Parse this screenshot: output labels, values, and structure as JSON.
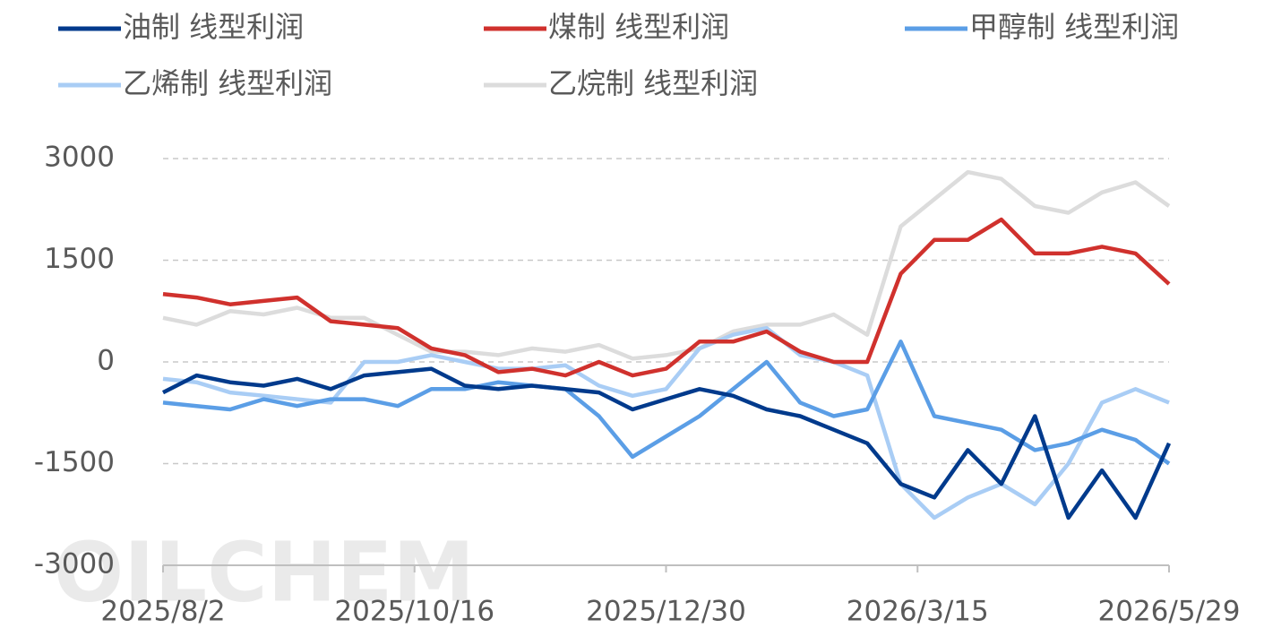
{
  "chart_data": {
    "type": "line",
    "watermark": "OILCHEM",
    "x": [
      "2025/8/2",
      "2025/8/12",
      "2025/8/22",
      "2025/9/1",
      "2025/9/11",
      "2025/9/21",
      "2025/10/1",
      "2025/10/11",
      "2025/10/21",
      "2025/10/31",
      "2025/11/10",
      "2025/11/20",
      "2025/11/30",
      "2025/12/10",
      "2025/12/20",
      "2025/12/30",
      "2026/1/9",
      "2026/1/19",
      "2026/1/29",
      "2026/2/8",
      "2026/2/18",
      "2026/2/28",
      "2026/3/10",
      "2026/3/20",
      "2026/3/30",
      "2026/4/9",
      "2026/4/19",
      "2026/4/29",
      "2026/5/9",
      "2026/5/19",
      "2026/5/29"
    ],
    "series": [
      {
        "name": "油制 线型利润",
        "color": "#003a8c",
        "values": [
          -450,
          -200,
          -300,
          -350,
          -250,
          -400,
          -200,
          -150,
          -100,
          -350,
          -400,
          -350,
          -400,
          -450,
          -700,
          -550,
          -400,
          -500,
          -700,
          -800,
          -1000,
          -1200,
          -1800,
          -2000,
          -1300,
          -1800,
          -800,
          -2300,
          -1600,
          -2300,
          -1200
        ]
      },
      {
        "name": "煤制 线型利润",
        "color": "#d0312d",
        "values": [
          1000,
          950,
          850,
          900,
          950,
          600,
          550,
          500,
          200,
          100,
          -150,
          -100,
          -200,
          0,
          -200,
          -100,
          300,
          300,
          450,
          150,
          0,
          0,
          1300,
          1800,
          1800,
          2100,
          1600,
          1600,
          1700,
          1600,
          1150
        ]
      },
      {
        "name": "甲醇制 线型利润",
        "color": "#5b9ee6",
        "values": [
          -600,
          -650,
          -700,
          -550,
          -650,
          -550,
          -550,
          -650,
          -400,
          -400,
          -300,
          -350,
          -400,
          -800,
          -1400,
          -1100,
          -800,
          -400,
          0,
          -600,
          -800,
          -700,
          300,
          -800,
          -900,
          -1000,
          -1300,
          -1200,
          -1000,
          -1150,
          -1500
        ]
      },
      {
        "name": "乙烯制 线型利润",
        "color": "#a9cdf5",
        "values": [
          -250,
          -300,
          -450,
          -500,
          -550,
          -600,
          0,
          0,
          100,
          0,
          -100,
          -100,
          -50,
          -350,
          -500,
          -400,
          200,
          400,
          500,
          100,
          0,
          -200,
          -1800,
          -2300,
          -2000,
          -1800,
          -2100,
          -1500,
          -600,
          -400,
          -600
        ]
      },
      {
        "name": "乙烷制 线型利润",
        "color": "#dcdcdc",
        "values": [
          650,
          550,
          750,
          700,
          800,
          650,
          650,
          400,
          150,
          150,
          100,
          200,
          150,
          250,
          50,
          100,
          200,
          450,
          550,
          550,
          700,
          400,
          2000,
          2400,
          2800,
          2700,
          2300,
          2200,
          2500,
          2650,
          2300
        ]
      }
    ],
    "xlim": [
      "2025/8/2",
      "2026/5/29"
    ],
    "xticks": [
      "2025/8/2",
      "2025/10/16",
      "2025/12/30",
      "2026/3/15",
      "2026/5/29"
    ],
    "ylim": [
      -3000,
      3000
    ],
    "yticks": [
      3000,
      1500,
      0,
      -1500,
      -3000
    ],
    "grid": true
  }
}
